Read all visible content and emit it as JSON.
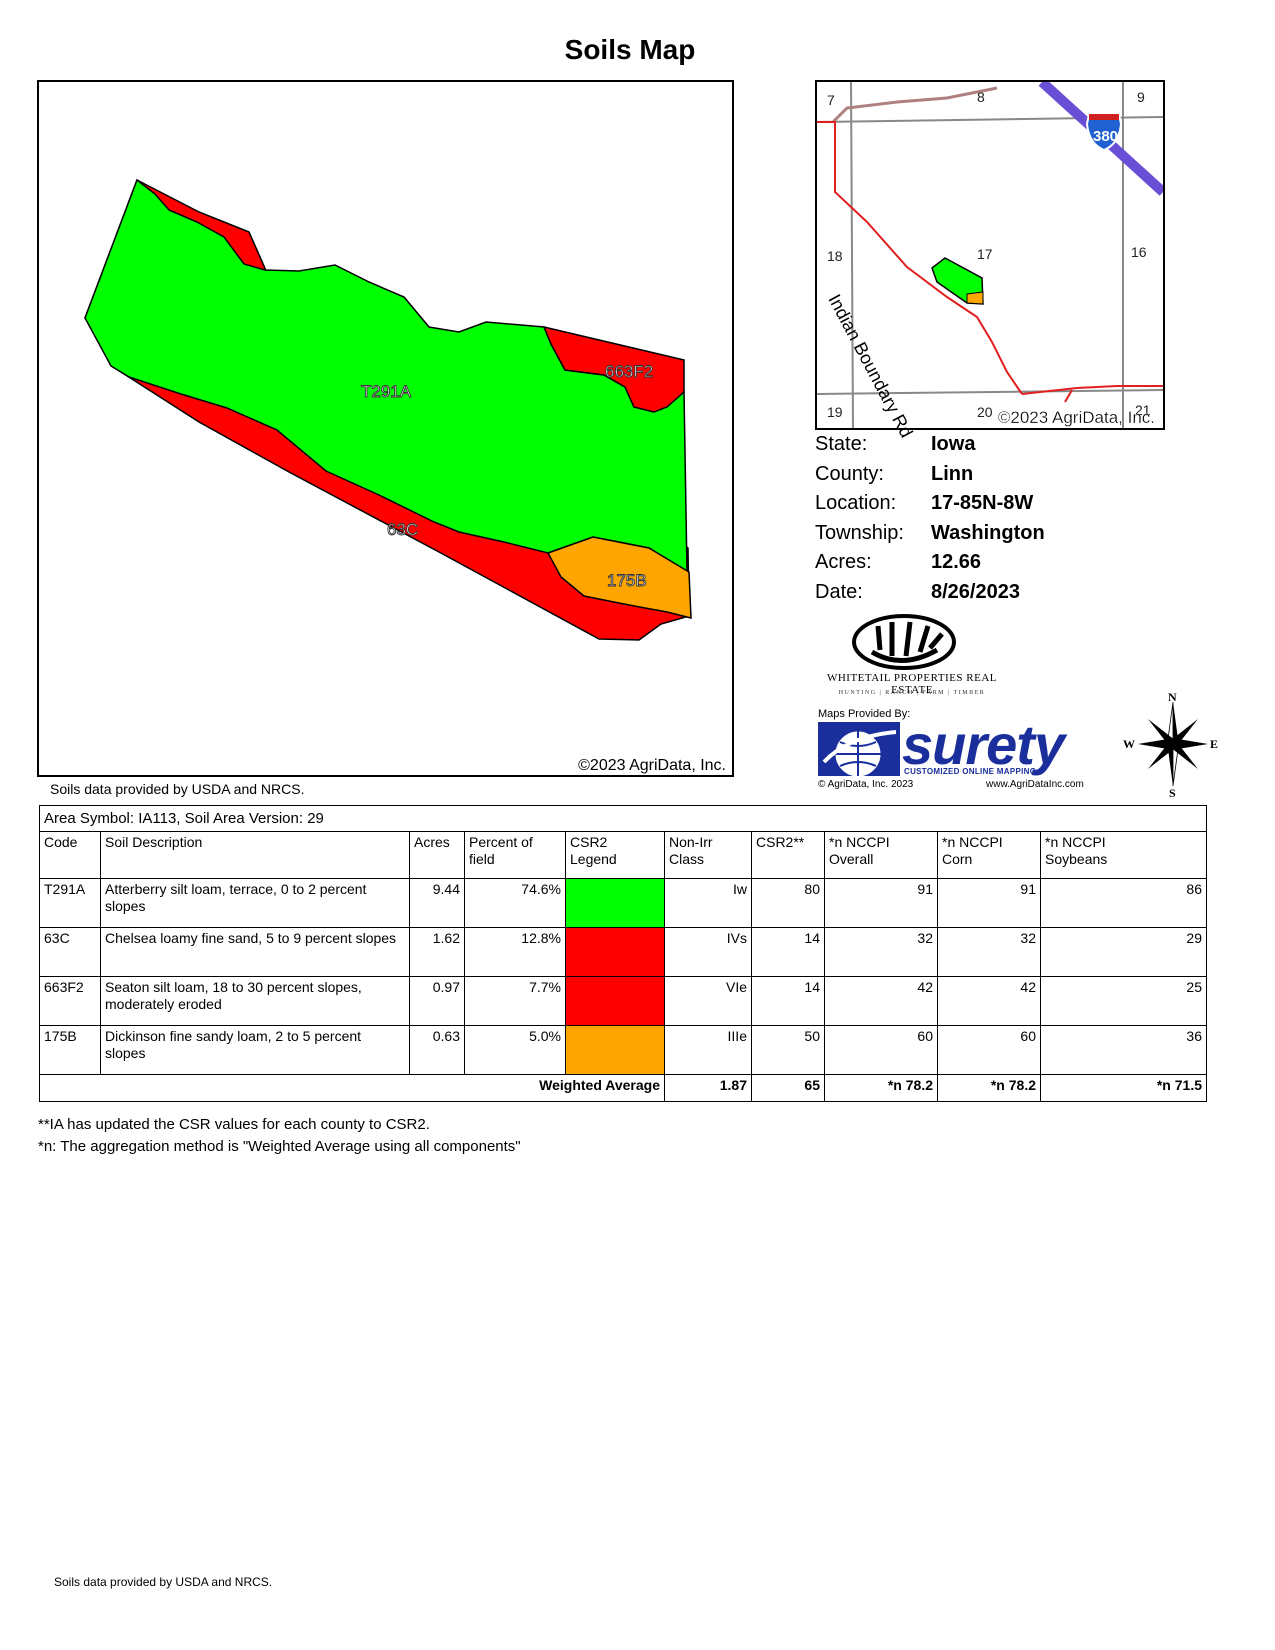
{
  "title": "Soils Map",
  "main_map": {
    "copyright": "©2023 AgriData, Inc.",
    "labels": {
      "t291a": "T291A",
      "c63": "63C",
      "f663": "663F2",
      "b175": "175B"
    },
    "colors": {
      "green": "#00ff00",
      "red": "#ff0000",
      "orange": "#ffa500"
    }
  },
  "data_source": "Soils data provided by USDA and NRCS.",
  "locator_map": {
    "sections": {
      "s7": "7",
      "s8": "8",
      "s9": "9",
      "s16": "16",
      "s17": "17",
      "s18": "18",
      "s19": "19",
      "s20": "20",
      "s21": "21"
    },
    "interstate_shield": "380",
    "road_label": "Indian Boundary Rd",
    "copyright": "©2023 AgriData, Inc."
  },
  "info": [
    {
      "key": "State:",
      "value": "Iowa"
    },
    {
      "key": "County:",
      "value": "Linn"
    },
    {
      "key": "Location:",
      "value": "17-85N-8W"
    },
    {
      "key": "Township:",
      "value": "Washington"
    },
    {
      "key": "Acres:",
      "value": "12.66"
    },
    {
      "key": "Date:",
      "value": "8/26/2023"
    }
  ],
  "branding": {
    "whitetail_name": "WHITETAIL PROPERTIES REAL ESTATE",
    "whitetail_sub": "HUNTING | RANCH | FARM | TIMBER",
    "maps_by": "Maps Provided By:",
    "surety": "surety",
    "surety_tag": "CUSTOMIZED ONLINE MAPPING",
    "surety_copy": "© AgriData, Inc. 2023",
    "surety_url": "www.AgriDataInc.com"
  },
  "compass": {
    "n": "N",
    "s": "S",
    "e": "E",
    "w": "W"
  },
  "table": {
    "area": "Area Symbol: IA113, Soil Area Version: 29",
    "headers": {
      "code": "Code",
      "desc": "Soil Description",
      "acres": "Acres",
      "pct_1": "Percent of",
      "pct_2": "field",
      "legend_1": "CSR2",
      "legend_2": "Legend",
      "nonirr_1": "Non-Irr",
      "nonirr_2": "Class",
      "csr2": "CSR2**",
      "overall_1": "*n NCCPI",
      "overall_2": "Overall",
      "corn_1": "*n NCCPI",
      "corn_2": "Corn",
      "soy_1": "*n NCCPI",
      "soy_2": "Soybeans"
    },
    "rows": [
      {
        "code": "T291A",
        "desc": "Atterberry silt loam, terrace, 0 to 2 percent slopes",
        "acres": "9.44",
        "pct": "74.6%",
        "color": "#00ff00",
        "class": "Iw",
        "csr2": "80",
        "overall": "91",
        "corn": "91",
        "soy": "86"
      },
      {
        "code": "63C",
        "desc": "Chelsea loamy fine sand, 5 to 9 percent slopes",
        "acres": "1.62",
        "pct": "12.8%",
        "color": "#ff0000",
        "class": "IVs",
        "csr2": "14",
        "overall": "32",
        "corn": "32",
        "soy": "29"
      },
      {
        "code": "663F2",
        "desc": "Seaton silt loam, 18 to 30 percent slopes, moderately eroded",
        "acres": "0.97",
        "pct": "7.7%",
        "color": "#ff0000",
        "class": "VIe",
        "csr2": "14",
        "overall": "42",
        "corn": "42",
        "soy": "25"
      },
      {
        "code": "175B",
        "desc": "Dickinson fine sandy loam, 2 to 5 percent slopes",
        "acres": "0.63",
        "pct": "5.0%",
        "color": "#ffa500",
        "class": "IIIe",
        "csr2": "50",
        "overall": "60",
        "corn": "60",
        "soy": "36"
      }
    ],
    "weighted": {
      "label": "Weighted Average",
      "class": "1.87",
      "csr2": "65",
      "overall": "*n 78.2",
      "corn": "*n 78.2",
      "soy": "*n 71.5"
    }
  },
  "footnotes": [
    "**IA has updated the CSR values for each county to CSR2.",
    "*n: The aggregation method is \"Weighted Average using all components\""
  ]
}
